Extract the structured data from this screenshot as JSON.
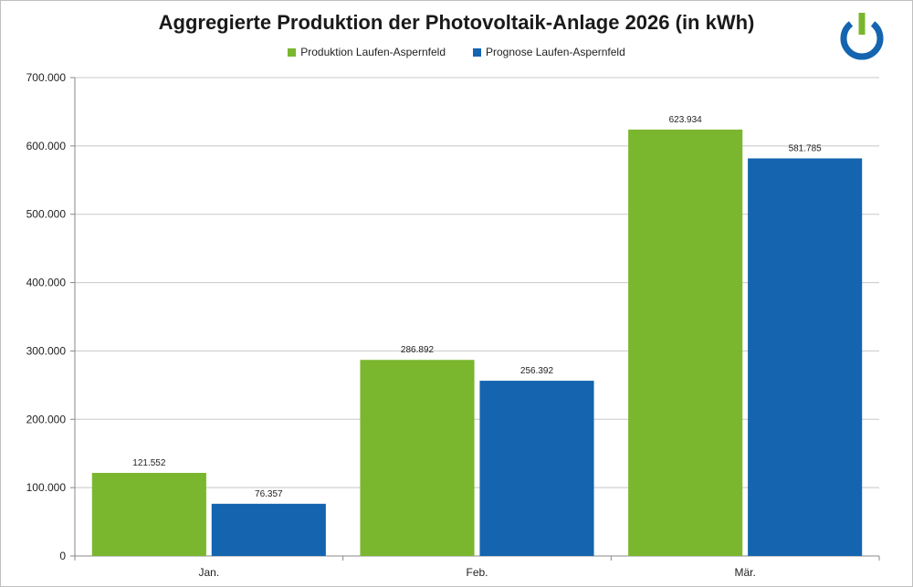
{
  "chart_data": {
    "type": "bar",
    "title": "Aggregierte Produktion der Photovoltaik-Anlage 2026 (in kWh)",
    "categories": [
      "Jan.",
      "Feb.",
      "Mär."
    ],
    "series": [
      {
        "name": "Produktion Laufen-Aspernfeld",
        "values": [
          121552,
          286892,
          623934
        ],
        "labels": [
          "121.552",
          "286.892",
          "623.934"
        ],
        "color": "#7ab62e"
      },
      {
        "name": "Prognose Laufen-Aspernfeld",
        "values": [
          76357,
          256392,
          581785
        ],
        "labels": [
          "76.357",
          "256.392",
          "581.785"
        ],
        "color": "#1464b0"
      }
    ],
    "ylim": [
      0,
      700000
    ],
    "yticks": [
      0,
      100000,
      200000,
      300000,
      400000,
      500000,
      600000,
      700000
    ],
    "ytick_labels": [
      "0",
      "100.000",
      "200.000",
      "300.000",
      "400.000",
      "500.000",
      "600.000",
      "700.000"
    ],
    "grid": true,
    "legend_position": "top"
  },
  "logo": {
    "name": "power-button-logo",
    "ring_color": "#1464b0",
    "bar_color": "#7ab62e"
  }
}
